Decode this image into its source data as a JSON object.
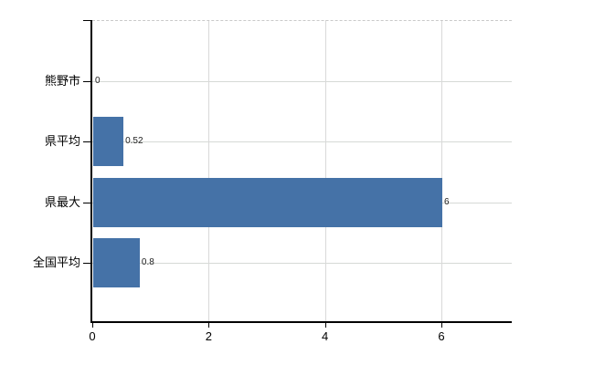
{
  "chart_data": {
    "type": "bar",
    "orientation": "horizontal",
    "title": "",
    "xlabel": "",
    "ylabel": "",
    "categories": [
      "熊野市",
      "県平均",
      "県最大",
      "全国平均"
    ],
    "values": [
      0,
      0.52,
      6,
      0.8
    ],
    "data_labels": [
      "0",
      "0.52",
      "6",
      "0.8"
    ],
    "x_ticks": [
      0,
      2,
      4,
      6
    ],
    "x_tick_labels": [
      "0",
      "2",
      "4",
      "6"
    ],
    "xlim": [
      0,
      7.2
    ],
    "grid": true,
    "legend": false,
    "colors": {
      "bar": "#4572a7",
      "gridline": "#d6d9d6",
      "plot_border_dashed": "#c9c9c9",
      "axis": "#000000",
      "label_text": "#000000",
      "data_label_text": "#222222",
      "background": "#ffffff"
    }
  }
}
